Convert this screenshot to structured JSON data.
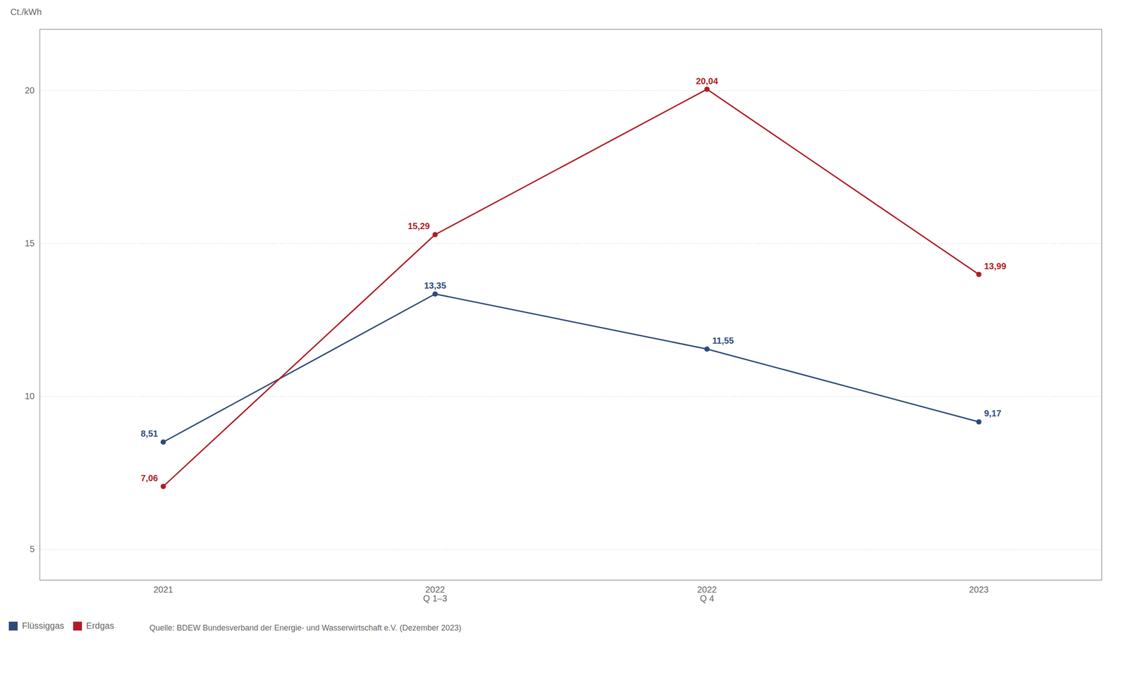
{
  "chart_data": {
    "type": "line",
    "categories": [
      "2021",
      "2022\nQ 1–3",
      "2022\nQ 4",
      "2023"
    ],
    "series": [
      {
        "name": "Flüssiggas",
        "color": "#2d4a7a",
        "values": [
          8.51,
          13.35,
          11.55,
          9.17
        ],
        "value_labels": [
          "8,51",
          "13,35",
          "11,55",
          "9,17"
        ],
        "marker": "circle"
      },
      {
        "name": "Erdgas",
        "color": "#b01c24",
        "values": [
          7.06,
          15.29,
          20.04,
          13.99
        ],
        "value_labels": [
          "7,06",
          "15,29",
          "20,04",
          "13,99"
        ],
        "marker": "circle"
      }
    ],
    "ylabel": "Ct./kWh",
    "ylim": [
      4.0,
      22.0
    ],
    "yticks": [
      5,
      10,
      15,
      20
    ],
    "grid": true,
    "legend": "lower left",
    "data_labels": true,
    "caption": "Quelle: BDEW Bundesverband der Energie- und Wasserwirtschaft e.V. (Dezember 2023)"
  }
}
